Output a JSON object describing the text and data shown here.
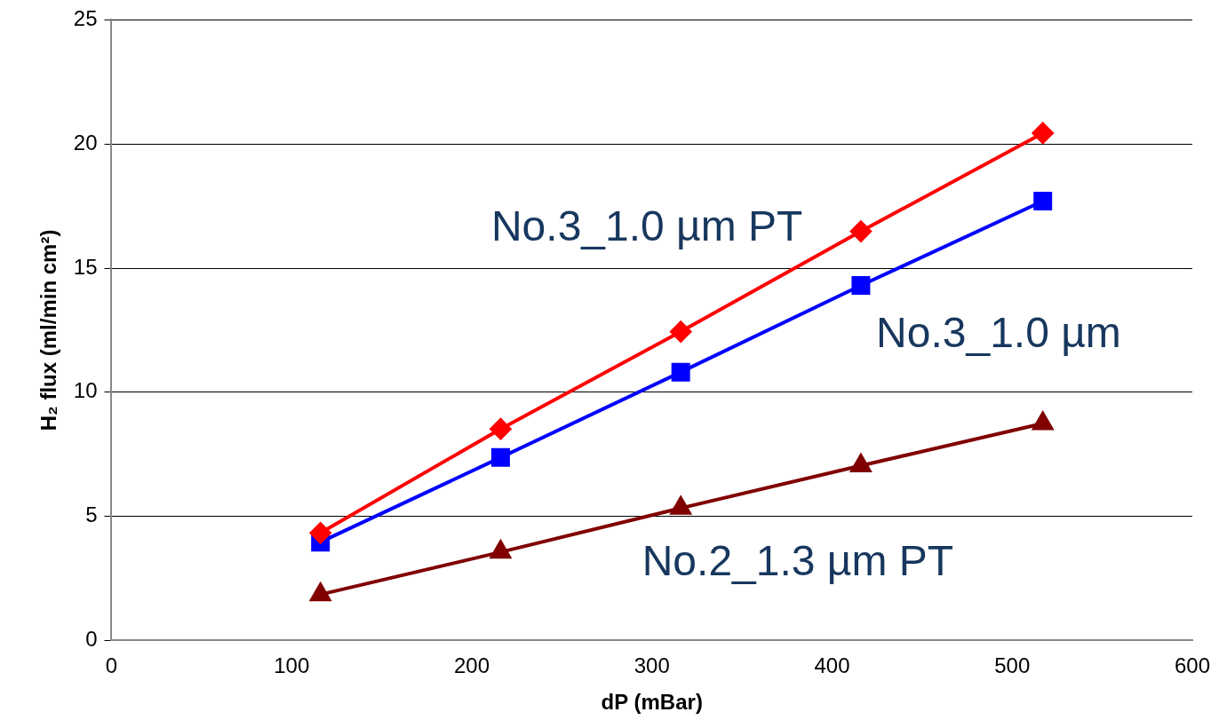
{
  "chart_data": {
    "type": "line",
    "xlabel": "dP (mBar)",
    "ylabel": "H₂ flux (ml/min cm²)",
    "xlim": [
      0,
      600
    ],
    "xticks": [
      0,
      100,
      200,
      300,
      400,
      500,
      600
    ],
    "ylim": [
      0,
      25
    ],
    "yticks": [
      0,
      5,
      10,
      15,
      20,
      25
    ],
    "grid": "y",
    "legend": false,
    "line_style": "solid",
    "series": [
      {
        "name": "No.3_1.0 µm PT",
        "color": "#ff0000",
        "marker": "diamond",
        "x": [
          116,
          216,
          316,
          416,
          517
        ],
        "values": [
          4.33,
          8.52,
          12.44,
          16.48,
          20.44
        ]
      },
      {
        "name": "No.3_1.0 µm",
        "color": "#0000ff",
        "marker": "square",
        "x": [
          116,
          216,
          316,
          416,
          517
        ],
        "values": [
          3.96,
          7.37,
          10.81,
          14.3,
          17.7
        ]
      },
      {
        "name": "No.2_1.3 µm PT",
        "color": "#800000",
        "marker": "triangle",
        "x": [
          116,
          216,
          316,
          416,
          517
        ],
        "values": [
          1.85,
          3.56,
          5.33,
          7.04,
          8.74
        ]
      }
    ]
  }
}
